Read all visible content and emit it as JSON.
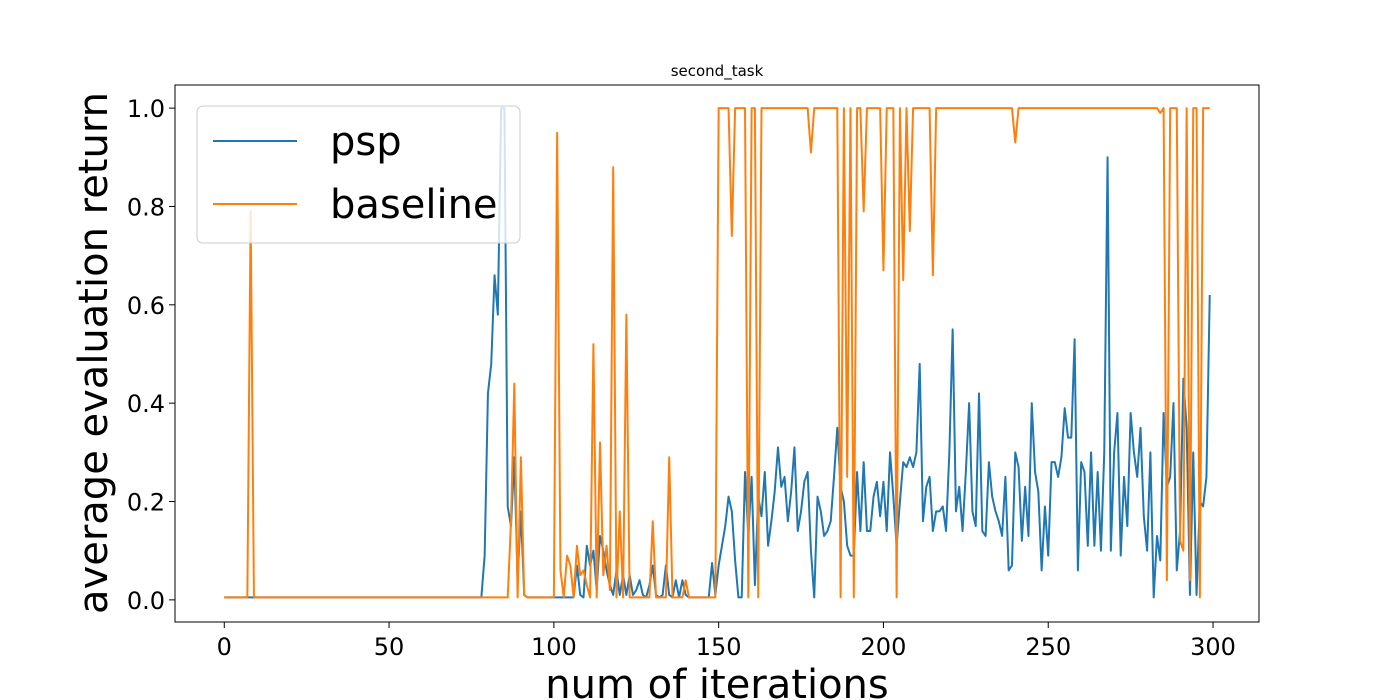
{
  "chart_data": {
    "type": "line",
    "title": "second_task",
    "x_label": "num of iterations",
    "y_label": "average evaluation return",
    "x": [
      0,
      1,
      2,
      3,
      4,
      5,
      6,
      7,
      8,
      9,
      10,
      11,
      12,
      13,
      14,
      15,
      16,
      17,
      18,
      19,
      20,
      21,
      22,
      23,
      24,
      25,
      26,
      27,
      28,
      29,
      30,
      31,
      32,
      33,
      34,
      35,
      36,
      37,
      38,
      39,
      40,
      41,
      42,
      43,
      44,
      45,
      46,
      47,
      48,
      49,
      50,
      51,
      52,
      53,
      54,
      55,
      56,
      57,
      58,
      59,
      60,
      61,
      62,
      63,
      64,
      65,
      66,
      67,
      68,
      69,
      70,
      71,
      72,
      73,
      74,
      75,
      76,
      77,
      78,
      79,
      80,
      81,
      82,
      83,
      84,
      85,
      86,
      87,
      88,
      89,
      90,
      91,
      92,
      93,
      94,
      95,
      96,
      97,
      98,
      99,
      100,
      101,
      102,
      103,
      104,
      105,
      106,
      107,
      108,
      109,
      110,
      111,
      112,
      113,
      114,
      115,
      116,
      117,
      118,
      119,
      120,
      121,
      122,
      123,
      124,
      125,
      126,
      127,
      128,
      129,
      130,
      131,
      132,
      133,
      134,
      135,
      136,
      137,
      138,
      139,
      140,
      141,
      142,
      143,
      144,
      145,
      146,
      147,
      148,
      149,
      150,
      151,
      152,
      153,
      154,
      155,
      156,
      157,
      158,
      159,
      160,
      161,
      162,
      163,
      164,
      165,
      166,
      167,
      168,
      169,
      170,
      171,
      172,
      173,
      174,
      175,
      176,
      177,
      178,
      179,
      180,
      181,
      182,
      183,
      184,
      185,
      186,
      187,
      188,
      189,
      190,
      191,
      192,
      193,
      194,
      195,
      196,
      197,
      198,
      199,
      200,
      201,
      202,
      203,
      204,
      205,
      206,
      207,
      208,
      209,
      210,
      211,
      212,
      213,
      214,
      215,
      216,
      217,
      218,
      219,
      220,
      221,
      222,
      223,
      224,
      225,
      226,
      227,
      228,
      229,
      230,
      231,
      232,
      233,
      234,
      235,
      236,
      237,
      238,
      239,
      240,
      241,
      242,
      243,
      244,
      245,
      246,
      247,
      248,
      249,
      250,
      251,
      252,
      253,
      254,
      255,
      256,
      257,
      258,
      259,
      260,
      261,
      262,
      263,
      264,
      265,
      266,
      267,
      268,
      269,
      270,
      271,
      272,
      273,
      274,
      275,
      276,
      277,
      278,
      279,
      280,
      281,
      282,
      283,
      284,
      285,
      286,
      287,
      288,
      289,
      290,
      291,
      292,
      293,
      294,
      295,
      296,
      297,
      298,
      299
    ],
    "series": [
      {
        "name": "psp",
        "color": "#1f77b4",
        "values": [
          0.005,
          0.005,
          0.005,
          0.005,
          0.005,
          0.005,
          0.005,
          0.005,
          0.005,
          0.005,
          0.005,
          0.005,
          0.005,
          0.005,
          0.005,
          0.005,
          0.005,
          0.005,
          0.005,
          0.005,
          0.005,
          0.005,
          0.005,
          0.005,
          0.005,
          0.005,
          0.005,
          0.005,
          0.005,
          0.005,
          0.005,
          0.005,
          0.005,
          0.005,
          0.005,
          0.005,
          0.005,
          0.005,
          0.005,
          0.005,
          0.005,
          0.005,
          0.005,
          0.005,
          0.005,
          0.005,
          0.005,
          0.005,
          0.005,
          0.005,
          0.005,
          0.005,
          0.005,
          0.005,
          0.005,
          0.005,
          0.005,
          0.005,
          0.005,
          0.005,
          0.005,
          0.005,
          0.005,
          0.005,
          0.005,
          0.005,
          0.005,
          0.005,
          0.005,
          0.005,
          0.005,
          0.005,
          0.005,
          0.005,
          0.005,
          0.005,
          0.005,
          0.005,
          0.005,
          0.09,
          0.42,
          0.48,
          0.66,
          0.58,
          1.0,
          1.0,
          0.19,
          0.15,
          0.29,
          0.04,
          0.18,
          0.01,
          0.005,
          0.005,
          0.005,
          0.005,
          0.005,
          0.005,
          0.005,
          0.005,
          0.005,
          0.005,
          0.005,
          0.005,
          0.005,
          0.005,
          0.005,
          0.07,
          0.01,
          0.005,
          0.11,
          0.07,
          0.1,
          0.02,
          0.13,
          0.1,
          0.06,
          0.03,
          0.01,
          0.06,
          0.01,
          0.05,
          0.01,
          0.05,
          0.01,
          0.02,
          0.04,
          0.01,
          0.005,
          0.03,
          0.07,
          0.01,
          0.005,
          0.01,
          0.07,
          0.01,
          0.005,
          0.04,
          0.005,
          0.04,
          0.01,
          0.005,
          0.005,
          0.005,
          0.005,
          0.005,
          0.005,
          0.005,
          0.075,
          0.01,
          0.07,
          0.11,
          0.15,
          0.21,
          0.18,
          0.08,
          0.005,
          0.005,
          0.26,
          0.13,
          0.25,
          0.03,
          0.21,
          0.17,
          0.26,
          0.11,
          0.16,
          0.22,
          0.31,
          0.23,
          0.25,
          0.16,
          0.22,
          0.31,
          0.14,
          0.18,
          0.24,
          0.26,
          0.1,
          0.005,
          0.21,
          0.18,
          0.13,
          0.14,
          0.16,
          0.25,
          0.35,
          0.23,
          0.2,
          0.11,
          0.09,
          0.09,
          0.26,
          0.14,
          0.28,
          0.14,
          0.14,
          0.21,
          0.24,
          0.17,
          0.24,
          0.14,
          0.3,
          0.21,
          0.11,
          0.2,
          0.28,
          0.27,
          0.29,
          0.27,
          0.3,
          0.48,
          0.16,
          0.23,
          0.25,
          0.14,
          0.18,
          0.18,
          0.19,
          0.14,
          0.3,
          0.55,
          0.18,
          0.23,
          0.14,
          0.26,
          0.4,
          0.18,
          0.15,
          0.42,
          0.14,
          0.13,
          0.28,
          0.21,
          0.18,
          0.16,
          0.13,
          0.25,
          0.06,
          0.07,
          0.3,
          0.27,
          0.12,
          0.23,
          0.13,
          0.4,
          0.26,
          0.22,
          0.06,
          0.19,
          0.09,
          0.28,
          0.28,
          0.25,
          0.29,
          0.39,
          0.33,
          0.33,
          0.53,
          0.06,
          0.28,
          0.26,
          0.11,
          0.3,
          0.11,
          0.26,
          0.1,
          0.3,
          0.9,
          0.1,
          0.3,
          0.38,
          0.09,
          0.25,
          0.15,
          0.38,
          0.3,
          0.25,
          0.35,
          0.17,
          0.1,
          0.3,
          0.005,
          0.13,
          0.08,
          0.38,
          0.23,
          0.25,
          0.4,
          0.06,
          0.14,
          0.45,
          0.35,
          0.01,
          0.3,
          0.01,
          0.2,
          0.19,
          0.25,
          0.62
        ]
      },
      {
        "name": "baseline",
        "color": "#ff7f0e",
        "values": [
          0.005,
          0.005,
          0.005,
          0.005,
          0.005,
          0.005,
          0.005,
          0.005,
          0.79,
          0.005,
          0.005,
          0.005,
          0.005,
          0.005,
          0.005,
          0.005,
          0.005,
          0.005,
          0.005,
          0.005,
          0.005,
          0.005,
          0.005,
          0.005,
          0.005,
          0.005,
          0.005,
          0.005,
          0.005,
          0.005,
          0.005,
          0.005,
          0.005,
          0.005,
          0.005,
          0.005,
          0.005,
          0.005,
          0.005,
          0.005,
          0.005,
          0.005,
          0.005,
          0.005,
          0.005,
          0.005,
          0.005,
          0.005,
          0.005,
          0.005,
          0.005,
          0.005,
          0.005,
          0.005,
          0.005,
          0.005,
          0.005,
          0.005,
          0.005,
          0.005,
          0.005,
          0.005,
          0.005,
          0.005,
          0.005,
          0.005,
          0.005,
          0.005,
          0.005,
          0.005,
          0.005,
          0.005,
          0.005,
          0.005,
          0.005,
          0.005,
          0.005,
          0.005,
          0.005,
          0.005,
          0.005,
          0.005,
          0.005,
          0.005,
          0.005,
          0.005,
          0.005,
          0.16,
          0.44,
          0.005,
          0.29,
          0.01,
          0.005,
          0.005,
          0.005,
          0.005,
          0.005,
          0.005,
          0.005,
          0.005,
          0.005,
          0.95,
          0.06,
          0.005,
          0.09,
          0.07,
          0.005,
          0.11,
          0.05,
          0.06,
          0.03,
          0.005,
          0.52,
          0.005,
          0.32,
          0.05,
          0.11,
          0.02,
          0.88,
          0.005,
          0.18,
          0.005,
          0.58,
          0.005,
          0.005,
          0.005,
          0.005,
          0.005,
          0.005,
          0.005,
          0.16,
          0.005,
          0.005,
          0.005,
          0.005,
          0.29,
          0.005,
          0.005,
          0.005,
          0.005,
          0.04,
          0.005,
          0.005,
          0.005,
          0.005,
          0.005,
          0.005,
          0.005,
          0.005,
          0.005,
          1.0,
          1.0,
          1.0,
          1.0,
          0.74,
          1.0,
          1.0,
          1.0,
          1.0,
          0.005,
          1.0,
          1.0,
          0.005,
          1.0,
          1.0,
          1.0,
          1.0,
          1.0,
          1.0,
          1.0,
          1.0,
          1.0,
          1.0,
          1.0,
          1.0,
          1.0,
          1.0,
          1.0,
          0.91,
          1.0,
          1.0,
          1.0,
          1.0,
          1.0,
          1.0,
          1.0,
          1.0,
          0.005,
          1.0,
          0.25,
          1.0,
          0.005,
          1.0,
          1.0,
          0.79,
          1.0,
          1.0,
          1.0,
          1.0,
          1.0,
          0.67,
          1.0,
          1.0,
          1.0,
          0.005,
          1.0,
          0.65,
          1.0,
          0.75,
          1.0,
          1.0,
          1.0,
          1.0,
          1.0,
          1.0,
          0.66,
          1.0,
          1.0,
          1.0,
          1.0,
          1.0,
          1.0,
          1.0,
          1.0,
          1.0,
          1.0,
          1.0,
          1.0,
          1.0,
          1.0,
          1.0,
          1.0,
          1.0,
          1.0,
          1.0,
          1.0,
          1.0,
          1.0,
          1.0,
          1.0,
          0.93,
          1.0,
          1.0,
          1.0,
          1.0,
          1.0,
          1.0,
          1.0,
          1.0,
          1.0,
          1.0,
          1.0,
          1.0,
          1.0,
          1.0,
          1.0,
          1.0,
          1.0,
          1.0,
          1.0,
          1.0,
          1.0,
          1.0,
          1.0,
          1.0,
          1.0,
          1.0,
          1.0,
          1.0,
          1.0,
          1.0,
          1.0,
          1.0,
          1.0,
          1.0,
          1.0,
          1.0,
          1.0,
          1.0,
          1.0,
          1.0,
          1.0,
          1.0,
          1.0,
          0.99,
          1.0,
          0.04,
          1.0,
          1.0,
          1.0,
          0.12,
          0.1,
          1.0,
          0.04,
          1.0,
          1.0,
          0.005,
          1.0,
          1.0,
          1.0
        ]
      }
    ],
    "xlim": [
      -14.95,
      313.95
    ],
    "xticks": [
      0,
      50,
      100,
      150,
      200,
      250,
      300
    ],
    "ylim": [
      -0.045,
      1.047
    ],
    "yticks": [
      {
        "value": 0,
        "label": "0.0"
      },
      {
        "value": 0.2,
        "label": "0.2"
      },
      {
        "value": 0.4,
        "label": "0.4"
      },
      {
        "value": 0.6,
        "label": "0.6"
      },
      {
        "value": 0.8,
        "label": "0.8"
      },
      {
        "value": 1,
        "label": "1.0"
      }
    ],
    "grid": false,
    "legend": "upper-left"
  }
}
